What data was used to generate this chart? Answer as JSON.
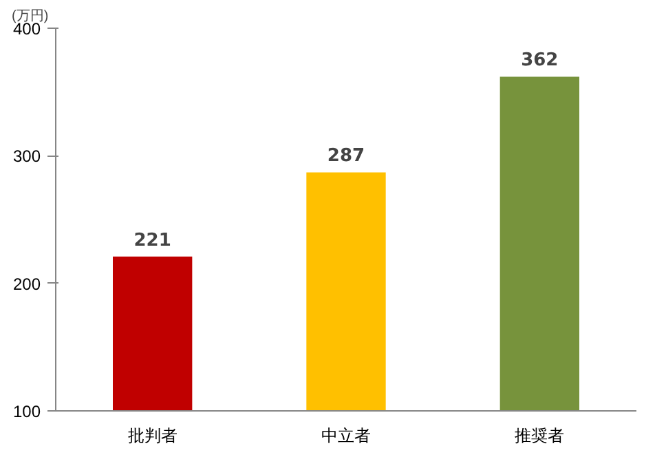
{
  "chart_data": {
    "type": "bar",
    "ylabel": "(万円)",
    "categories": [
      "批判者",
      "中立者",
      "推奨者"
    ],
    "values": [
      221,
      287,
      362
    ],
    "colors": [
      "#c00000",
      "#ffc000",
      "#77933c"
    ],
    "ylim": [
      100,
      400
    ],
    "yticks": [
      100,
      200,
      300,
      400
    ],
    "data_labels": true,
    "grid": false
  }
}
